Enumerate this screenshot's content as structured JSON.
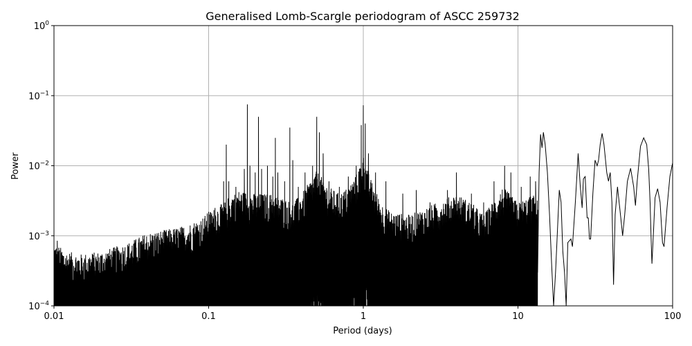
{
  "chart_data": {
    "type": "line",
    "title": "Generalised Lomb-Scargle periodogram of ASCC 259732",
    "xlabel": "Period (days)",
    "ylabel": "Power",
    "xscale": "log",
    "yscale": "log",
    "xlim": [
      0.01,
      100
    ],
    "ylim": [
      0.0001,
      1
    ],
    "grid": true,
    "x_ticks": [
      {
        "value": 0.01,
        "label": "0.01"
      },
      {
        "value": 0.1,
        "label": "0.1"
      },
      {
        "value": 1,
        "label": "1"
      },
      {
        "value": 10,
        "label": "10"
      },
      {
        "value": 100,
        "label": "100"
      }
    ],
    "y_ticks": [
      {
        "value": 0.0001,
        "mantissa": "10",
        "exponent": "−4"
      },
      {
        "value": 0.001,
        "mantissa": "10",
        "exponent": "−3"
      },
      {
        "value": 0.01,
        "mantissa": "10",
        "exponent": "−2"
      },
      {
        "value": 0.1,
        "mantissa": "10",
        "exponent": "−1"
      },
      {
        "value": 1,
        "mantissa": "10",
        "exponent": "0"
      }
    ],
    "series": [
      {
        "color": "#000000",
        "envelope": [
          [
            0.01,
            0.0008
          ],
          [
            0.012,
            0.0006
          ],
          [
            0.015,
            0.00055
          ],
          [
            0.02,
            0.0006
          ],
          [
            0.025,
            0.0007
          ],
          [
            0.03,
            0.0008
          ],
          [
            0.04,
            0.0011
          ],
          [
            0.05,
            0.0012
          ],
          [
            0.06,
            0.0013
          ],
          [
            0.07,
            0.0014
          ],
          [
            0.08,
            0.0016
          ],
          [
            0.09,
            0.0018
          ],
          [
            0.1,
            0.0022
          ],
          [
            0.12,
            0.0028
          ],
          [
            0.15,
            0.0045
          ],
          [
            0.2,
            0.004
          ],
          [
            0.25,
            0.004
          ],
          [
            0.3,
            0.0035
          ],
          [
            0.35,
            0.003
          ],
          [
            0.4,
            0.004
          ],
          [
            0.45,
            0.006
          ],
          [
            0.5,
            0.0085
          ],
          [
            0.6,
            0.005
          ],
          [
            0.7,
            0.004
          ],
          [
            0.8,
            0.005
          ],
          [
            0.9,
            0.0075
          ],
          [
            1.0,
            0.014
          ],
          [
            1.1,
            0.007
          ],
          [
            1.3,
            0.003
          ],
          [
            1.5,
            0.0022
          ],
          [
            2.0,
            0.002
          ],
          [
            3.0,
            0.003
          ],
          [
            4.0,
            0.004
          ],
          [
            5.0,
            0.003
          ],
          [
            6.0,
            0.002
          ],
          [
            8.0,
            0.005
          ],
          [
            10.0,
            0.003
          ],
          [
            13.0,
            0.004
          ]
        ],
        "peaks": [
          [
            0.0105,
            0.00085
          ],
          [
            0.015,
            0.00045
          ],
          [
            0.018,
            0.00048
          ],
          [
            0.024,
            0.0005
          ],
          [
            0.028,
            0.00055
          ],
          [
            0.038,
            0.0007
          ],
          [
            0.046,
            0.0008
          ],
          [
            0.05,
            0.0009
          ],
          [
            0.06,
            0.001
          ],
          [
            0.065,
            0.0011
          ],
          [
            0.08,
            0.0013
          ],
          [
            0.1,
            0.0022
          ],
          [
            0.11,
            0.0025
          ],
          [
            0.125,
            0.006
          ],
          [
            0.13,
            0.02
          ],
          [
            0.135,
            0.006
          ],
          [
            0.15,
            0.005
          ],
          [
            0.17,
            0.009
          ],
          [
            0.178,
            0.075
          ],
          [
            0.185,
            0.01
          ],
          [
            0.2,
            0.008
          ],
          [
            0.21,
            0.05
          ],
          [
            0.22,
            0.009
          ],
          [
            0.24,
            0.01
          ],
          [
            0.26,
            0.007
          ],
          [
            0.27,
            0.025
          ],
          [
            0.28,
            0.008
          ],
          [
            0.31,
            0.006
          ],
          [
            0.335,
            0.035
          ],
          [
            0.35,
            0.012
          ],
          [
            0.38,
            0.005
          ],
          [
            0.42,
            0.008
          ],
          [
            0.47,
            0.01
          ],
          [
            0.5,
            0.05
          ],
          [
            0.52,
            0.03
          ],
          [
            0.55,
            0.015
          ],
          [
            0.6,
            0.006
          ],
          [
            0.7,
            0.005
          ],
          [
            0.8,
            0.007
          ],
          [
            0.9,
            0.01
          ],
          [
            0.97,
            0.038
          ],
          [
            1.0,
            0.073
          ],
          [
            1.03,
            0.04
          ],
          [
            1.08,
            0.015
          ],
          [
            1.2,
            0.008
          ],
          [
            1.4,
            0.006
          ],
          [
            1.8,
            0.004
          ],
          [
            2.2,
            0.0045
          ],
          [
            2.7,
            0.003
          ],
          [
            3.5,
            0.0045
          ],
          [
            4.0,
            0.008
          ],
          [
            5.0,
            0.004
          ],
          [
            6.0,
            0.003
          ],
          [
            7.0,
            0.006
          ],
          [
            8.2,
            0.01
          ],
          [
            9.0,
            0.008
          ],
          [
            10.5,
            0.005
          ],
          [
            12.0,
            0.007
          ],
          [
            13.0,
            0.006
          ]
        ],
        "smooth": [
          [
            13.4,
            0.0003
          ],
          [
            13.7,
            0.008
          ],
          [
            14.0,
            0.028
          ],
          [
            14.3,
            0.018
          ],
          [
            14.6,
            0.03
          ],
          [
            15.0,
            0.02
          ],
          [
            15.5,
            0.008
          ],
          [
            16.0,
            0.002
          ],
          [
            16.5,
            0.0004
          ],
          [
            17.0,
            0.0001
          ],
          [
            17.5,
            0.0003
          ],
          [
            18.5,
            0.0045
          ],
          [
            19.0,
            0.003
          ],
          [
            19.5,
            0.0006
          ],
          [
            20.0,
            0.0003
          ],
          [
            20.5,
            0.0001
          ],
          [
            21.0,
            0.0008
          ],
          [
            22.0,
            0.0009
          ],
          [
            22.5,
            0.0007
          ],
          [
            23.5,
            0.003
          ],
          [
            24.5,
            0.015
          ],
          [
            25.3,
            0.005
          ],
          [
            26.0,
            0.0025
          ],
          [
            26.5,
            0.0065
          ],
          [
            27.2,
            0.007
          ],
          [
            28.0,
            0.0018
          ],
          [
            28.5,
            0.0018
          ],
          [
            29.0,
            0.0009
          ],
          [
            29.5,
            0.0009
          ],
          [
            30.5,
            0.004
          ],
          [
            31.5,
            0.012
          ],
          [
            32.5,
            0.01
          ],
          [
            33.2,
            0.012
          ],
          [
            34.0,
            0.02
          ],
          [
            35.0,
            0.029
          ],
          [
            36.0,
            0.02
          ],
          [
            37.5,
            0.008
          ],
          [
            38.5,
            0.006
          ],
          [
            39.5,
            0.008
          ],
          [
            40.5,
            0.003
          ],
          [
            41.5,
            0.0002
          ],
          [
            42.5,
            0.002
          ],
          [
            44.0,
            0.005
          ],
          [
            46.0,
            0.002
          ],
          [
            47.5,
            0.001
          ],
          [
            49.0,
            0.002
          ],
          [
            51.0,
            0.006
          ],
          [
            53.5,
            0.0092
          ],
          [
            56.0,
            0.005
          ],
          [
            57.5,
            0.0027
          ],
          [
            59.0,
            0.006
          ],
          [
            62.0,
            0.019
          ],
          [
            65.0,
            0.025
          ],
          [
            68.0,
            0.02
          ],
          [
            70.0,
            0.009
          ],
          [
            71.5,
            0.003
          ],
          [
            72.5,
            0.001
          ],
          [
            73.5,
            0.0004
          ],
          [
            75.0,
            0.001
          ],
          [
            77.0,
            0.0035
          ],
          [
            80.0,
            0.0047
          ],
          [
            83.0,
            0.003
          ],
          [
            86.0,
            0.0008
          ],
          [
            88.0,
            0.0007
          ],
          [
            92.0,
            0.0025
          ],
          [
            96.0,
            0.007
          ],
          [
            100.0,
            0.011
          ]
        ]
      }
    ]
  }
}
